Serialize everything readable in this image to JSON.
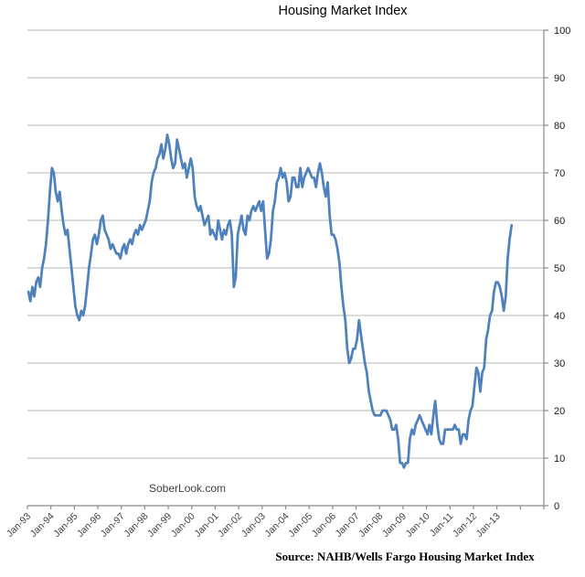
{
  "page": {
    "title": "Housing Market Index",
    "watermark": "SoberLook.com",
    "source_caption": "Source: NAHB/Wells Fargo Housing Market Index"
  },
  "chart_data": {
    "type": "line",
    "title": "Housing Market Index",
    "legend": "none",
    "grid": "horizontal",
    "y_axis_side": "right",
    "ylim": [
      0,
      100
    ],
    "y_ticks": [
      0,
      10,
      20,
      30,
      40,
      50,
      60,
      70,
      80,
      90,
      100
    ],
    "x_tick_labels": [
      "Jan-93",
      "Jan-94",
      "Jan-95",
      "Jan-96",
      "Jan-97",
      "Jan-98",
      "Jan-99",
      "Jan-00",
      "Jan-01",
      "Jan-02",
      "Jan-03",
      "Jan-04",
      "Jan-05",
      "Jan-06",
      "Jan-07",
      "Jan-08",
      "Jan-09",
      "Jan-10",
      "Jan-11",
      "Jan-12",
      "Jan-13"
    ],
    "x_axis_total_years": 22,
    "series": [
      {
        "name": "Housing Market Index",
        "frequency": "monthly",
        "start": "Jan-93",
        "end": "Aug-13",
        "values": [
          45,
          43,
          46,
          44,
          47,
          48,
          46,
          50,
          52,
          55,
          60,
          66,
          71,
          70,
          66,
          64,
          66,
          62,
          59,
          57,
          58,
          54,
          50,
          46,
          42,
          40,
          39,
          41,
          40,
          42,
          46,
          50,
          53,
          56,
          57,
          55,
          57,
          60,
          61,
          58,
          57,
          56,
          54,
          55,
          54,
          53,
          53,
          52,
          54,
          55,
          53,
          55,
          56,
          55,
          57,
          58,
          57,
          59,
          58,
          59,
          60,
          62,
          64,
          68,
          70,
          71,
          73,
          74,
          76,
          73,
          75,
          78,
          76,
          73,
          71,
          72,
          77,
          75,
          73,
          71,
          72,
          69,
          71,
          73,
          71,
          65,
          63,
          62,
          63,
          61,
          59,
          60,
          61,
          57,
          58,
          57,
          56,
          60,
          58,
          56,
          58,
          57,
          59,
          60,
          57,
          46,
          48,
          57,
          59,
          61,
          58,
          57,
          61,
          60,
          62,
          63,
          62,
          63,
          64,
          62,
          64,
          58,
          52,
          53,
          56,
          62,
          64,
          68,
          69,
          71,
          69,
          70,
          68,
          64,
          65,
          69,
          69,
          67,
          67,
          71,
          67,
          69,
          70,
          71,
          70,
          69,
          69,
          67,
          70,
          72,
          70,
          67,
          65,
          68,
          61,
          57,
          57,
          56,
          54,
          51,
          46,
          42,
          39,
          33,
          30,
          31,
          33,
          33,
          35,
          39,
          36,
          33,
          30,
          28,
          24,
          22,
          20,
          19,
          19,
          19,
          19,
          20,
          20,
          20,
          19,
          18,
          16,
          16,
          17,
          14,
          9,
          9,
          8,
          9,
          9,
          14,
          16,
          15,
          17,
          18,
          19,
          18,
          17,
          16,
          15,
          17,
          15,
          19,
          22,
          17,
          14,
          13,
          13,
          16,
          16,
          16,
          16,
          16,
          17,
          16,
          16,
          13,
          15,
          15,
          14,
          18,
          20,
          21,
          25,
          29,
          28,
          24,
          28,
          29,
          35,
          37,
          40,
          41,
          45,
          47,
          47,
          46,
          44,
          41,
          44,
          52,
          56,
          59
        ]
      }
    ],
    "colors": {
      "line": "#4f81bd",
      "gridline": "#b7b7b7",
      "axis": "#898989",
      "tick_label": "#404040",
      "y_label": "#1a1a1a"
    }
  }
}
